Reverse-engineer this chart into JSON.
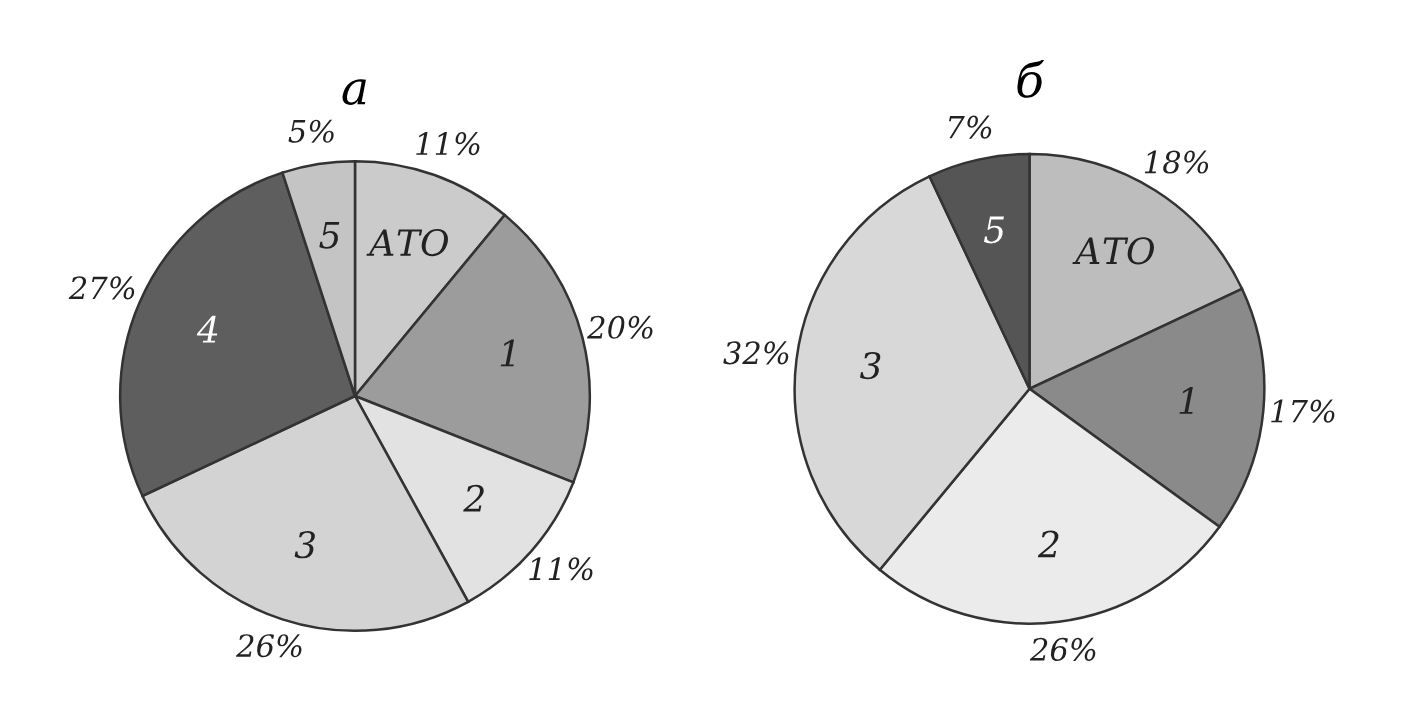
{
  "chart_data": [
    {
      "type": "pie",
      "title": "а",
      "categories": [
        "АТО",
        "1",
        "2",
        "3",
        "4",
        "5"
      ],
      "values": [
        11,
        20,
        11,
        26,
        27,
        5
      ],
      "value_labels": [
        "11%",
        "20%",
        "11%",
        "26%",
        "27%",
        "5%"
      ],
      "colors": [
        "#cbcbcb",
        "#9c9c9c",
        "#e2e2e2",
        "#d3d3d3",
        "#5e5e5e",
        "#c4c4c4"
      ]
    },
    {
      "type": "pie",
      "title": "б",
      "categories": [
        "АТО",
        "1",
        "2",
        "3",
        "5"
      ],
      "values": [
        18,
        17,
        26,
        32,
        7
      ],
      "value_labels": [
        "18%",
        "17%",
        "26%",
        "32%",
        "7%"
      ],
      "colors": [
        "#bdbdbd",
        "#8a8a8a",
        "#ebebeb",
        "#d8d8d8",
        "#555555"
      ]
    }
  ]
}
